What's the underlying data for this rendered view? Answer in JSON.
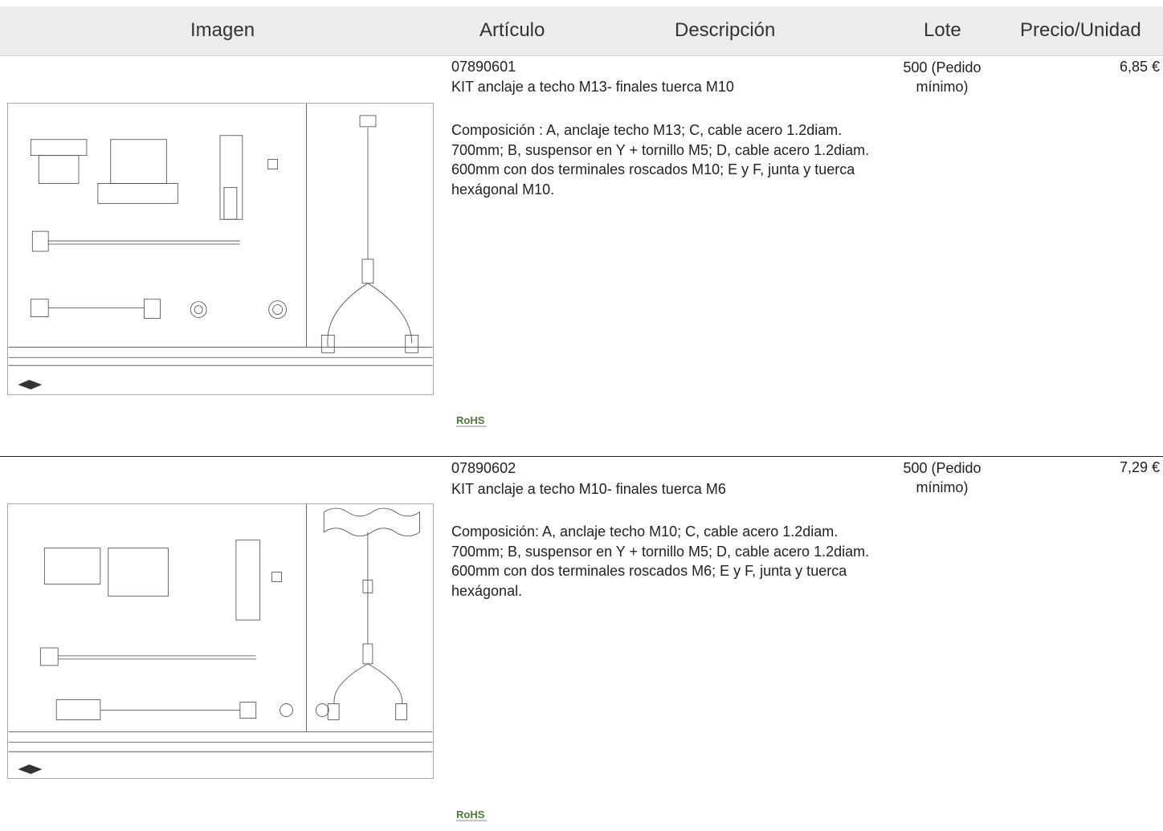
{
  "header": {
    "imagen": "Imagen",
    "articulo": "Artículo",
    "descripcion": "Descripción",
    "lote": "Lote",
    "precio": "Precio/Unidad"
  },
  "products": [
    {
      "code": "07890601",
      "title": "KIT anclaje a techo M13- finales tuerca M10",
      "description": "Composición : A, anclaje techo M13; C, cable acero 1.2diam. 700mm; B, suspensor en Y + tornillo M5; D, cable acero 1.2diam. 600mm con dos terminales roscados M10; E y F, junta y tuerca hexágonal M10.",
      "lote": "500 (Pedido mínimo)",
      "price": "6,85 €"
    },
    {
      "code": "07890602",
      "title": "KIT anclaje a techo M10- finales tuerca M6",
      "description": "Composición: A, anclaje techo M10; C, cable acero 1.2diam. 700mm; B, suspensor en Y + tornillo M5; D, cable acero 1.2diam. 600mm con dos terminales roscados M6; E y F, junta y tuerca hexágonal.",
      "lote": "500 (Pedido mínimo)",
      "price": "7,29 €"
    }
  ],
  "rohs_label": "RoHS"
}
